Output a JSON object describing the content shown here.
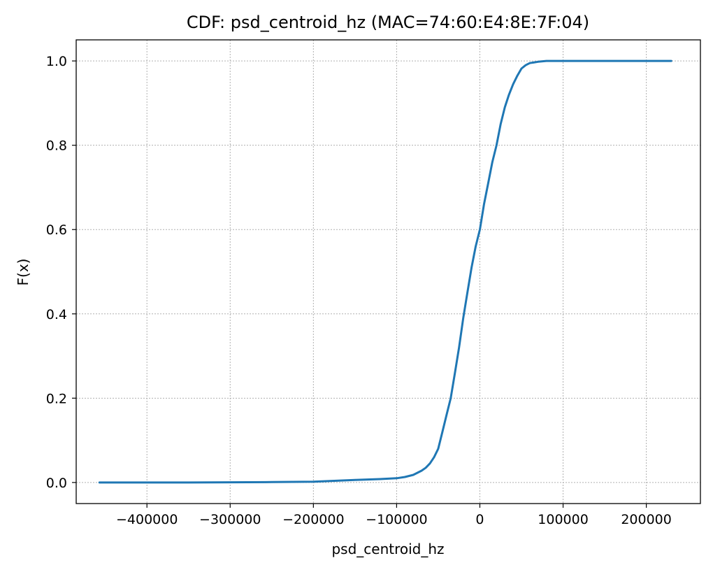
{
  "chart_data": {
    "type": "line",
    "title": "CDF: psd_centroid_hz (MAC=74:60:E4:8E:7F:04)",
    "xlabel": "psd_centroid_hz",
    "ylabel": "F(x)",
    "xlim": [
      -485000,
      265000
    ],
    "ylim": [
      -0.05,
      1.05
    ],
    "xticks": [
      -400000,
      -300000,
      -200000,
      -100000,
      0,
      100000,
      200000
    ],
    "xtick_labels": [
      "−400000",
      "−300000",
      "−200000",
      "−100000",
      "0",
      "100000",
      "200000"
    ],
    "yticks": [
      0.0,
      0.2,
      0.4,
      0.6,
      0.8,
      1.0
    ],
    "ytick_labels": [
      "0.0",
      "0.2",
      "0.4",
      "0.6",
      "0.8",
      "1.0"
    ],
    "grid": true,
    "legend": "none",
    "series": [
      {
        "color": "#1f77b4",
        "x": [
          -457000,
          -350000,
          -250000,
          -200000,
          -175000,
          -150000,
          -120000,
          -100000,
          -90000,
          -80000,
          -70000,
          -65000,
          -60000,
          -55000,
          -50000,
          -45000,
          -40000,
          -35000,
          -30000,
          -25000,
          -20000,
          -15000,
          -10000,
          -5000,
          0,
          5000,
          10000,
          15000,
          20000,
          25000,
          30000,
          35000,
          40000,
          45000,
          50000,
          55000,
          60000,
          70000,
          80000,
          100000,
          150000,
          230000
        ],
        "y": [
          0.0,
          0.0,
          0.001,
          0.002,
          0.004,
          0.006,
          0.008,
          0.01,
          0.013,
          0.018,
          0.028,
          0.035,
          0.045,
          0.06,
          0.08,
          0.12,
          0.16,
          0.2,
          0.26,
          0.32,
          0.39,
          0.45,
          0.51,
          0.56,
          0.6,
          0.66,
          0.71,
          0.76,
          0.8,
          0.85,
          0.89,
          0.92,
          0.945,
          0.965,
          0.982,
          0.99,
          0.995,
          0.998,
          1.0,
          1.0,
          1.0,
          1.0
        ]
      }
    ]
  }
}
